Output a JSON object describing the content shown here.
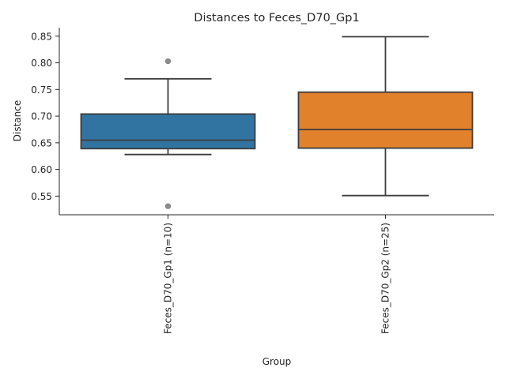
{
  "chart_data": {
    "type": "box",
    "title": "Distances to Feces_D70_Gp1",
    "xlabel": "Group",
    "ylabel": "Distance",
    "ylim": [
      0.515,
      0.866
    ],
    "yticks": [
      "0.55",
      "0.60",
      "0.65",
      "0.70",
      "0.75",
      "0.80",
      "0.85"
    ],
    "grid": false,
    "legend": "none",
    "categories": [
      "Feces_D70_Gp1 (n=10)",
      "Feces_D70_Gp2 (n=25)"
    ],
    "boxes": [
      {
        "category": "Feces_D70_Gp1 (n=10)",
        "color": "#3274a1",
        "whisker_low": 0.628,
        "q1": 0.639,
        "median": 0.655,
        "q3": 0.704,
        "whisker_high": 0.77,
        "outliers": [
          0.803,
          0.531
        ]
      },
      {
        "category": "Feces_D70_Gp2 (n=25)",
        "color": "#e1812c",
        "whisker_low": 0.551,
        "q1": 0.64,
        "median": 0.675,
        "q3": 0.745,
        "whisker_high": 0.849,
        "outliers": []
      }
    ],
    "colors": {
      "box_edge": "#3d3d3d",
      "outlier_fill": "#8c8c8c"
    }
  }
}
